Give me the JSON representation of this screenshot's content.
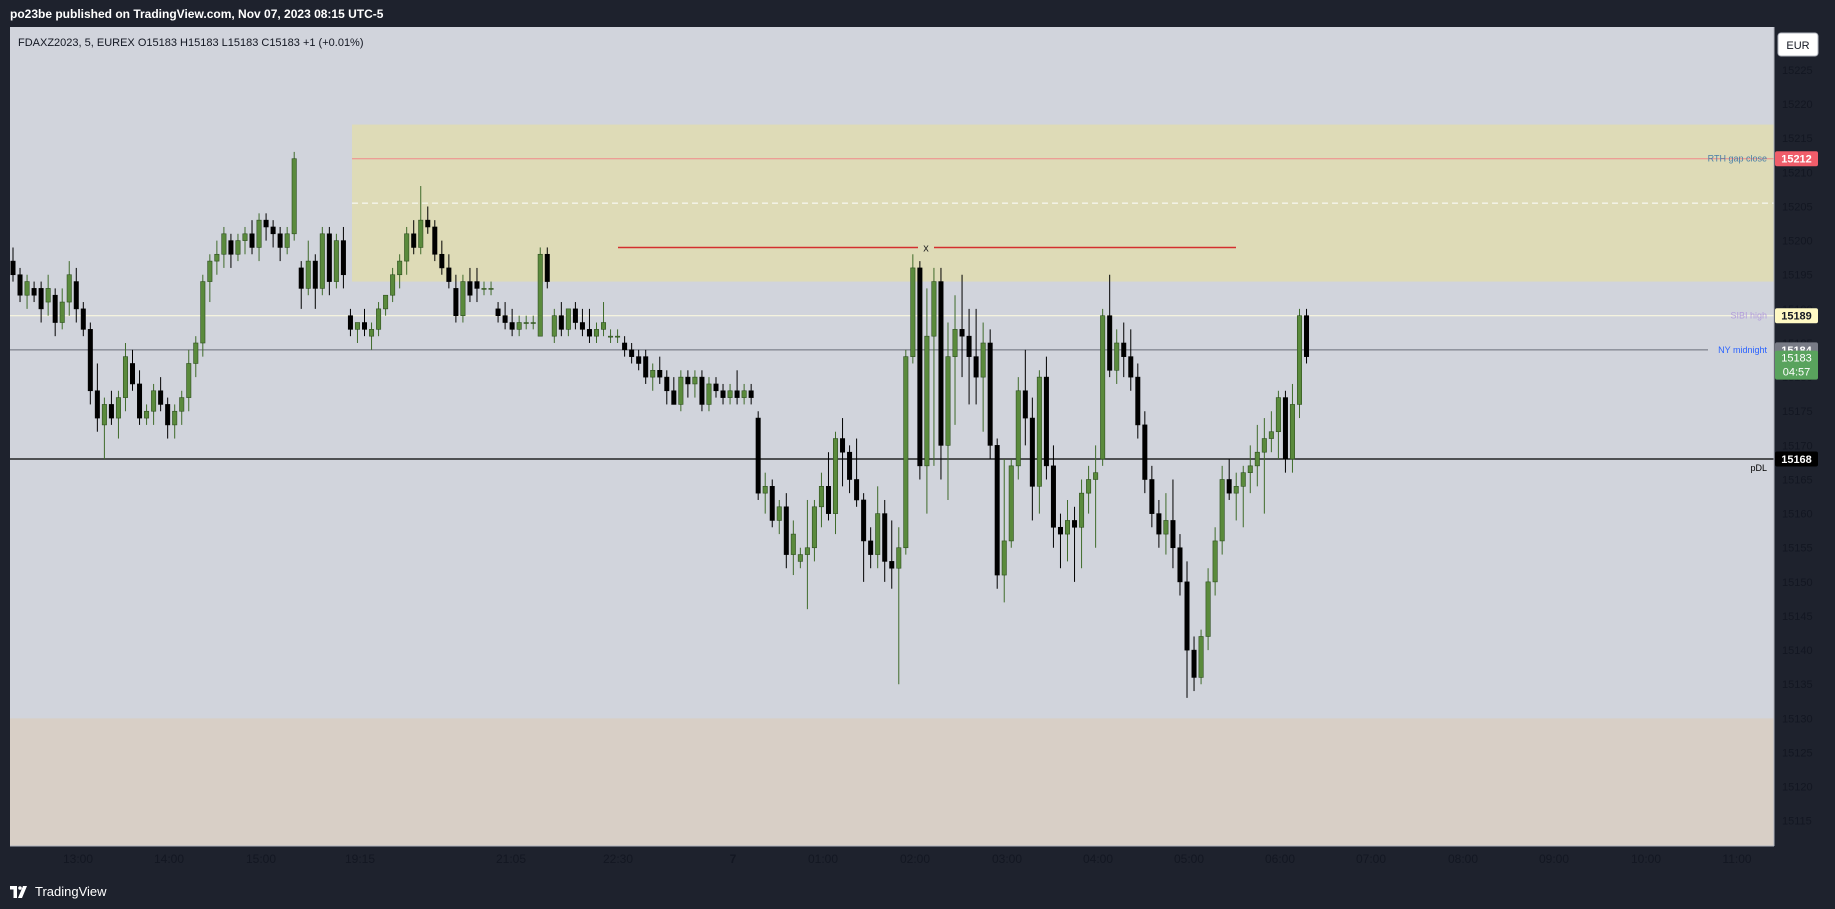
{
  "header": {
    "published": "po23be published on TradingView.com, Nov 07, 2023 08:15 UTC-5"
  },
  "legend": {
    "symbol_line": "FDAXZ2023, 5, EUREX  O15183  H15183  L15183  C15183  +1 (+0.01%)"
  },
  "currency_button": "EUR",
  "footer": {
    "brand": "TradingView",
    "logo_icon": "tradingview-logo-icon"
  },
  "colors": {
    "bg": "#d1d4dc",
    "zone_yellow": "#dedbb7",
    "zone_tan": "#d8cfc6",
    "up_fill": "#5a8a3c",
    "down_fill": "#000000",
    "rth_badge": "#f05d6a",
    "sibi_badge": "#fff9c4",
    "last_badge": "#787b86",
    "close_badge": "#59a35d",
    "pdl_badge": "#000000"
  },
  "annotations": {
    "rth_gap_close": "RTH gap close",
    "sibi_high": "SIBI high",
    "ny_midnight": "NY midnight",
    "pdl": "pDL",
    "x_marker": "x",
    "countdown": "04:57"
  },
  "chart_data": {
    "type": "candlestick",
    "symbol": "FDAXZ2023",
    "timeframe": "5",
    "exchange": "EUREX",
    "ohlc_readout": {
      "open": 15183,
      "high": 15183,
      "low": 15183,
      "close": 15183,
      "change": "+1 (+0.01%)"
    },
    "y_axis": {
      "ticks": [
        15225,
        15220,
        15215,
        15210,
        15205,
        15200,
        15195,
        15190,
        15185,
        15180,
        15175,
        15170,
        15165,
        15160,
        15155,
        15150,
        15145,
        15140,
        15135,
        15130,
        15125,
        15120,
        15115
      ],
      "visible_range": [
        15111.3,
        15231.3
      ]
    },
    "x_axis": {
      "ticks": [
        "13:00",
        "14:00",
        "15:00",
        "19:15",
        "21:05",
        "22:30",
        "7",
        "01:00",
        "02:00",
        "03:00",
        "04:00",
        "05:00",
        "06:00",
        "07:00",
        "08:00",
        "09:00",
        "10:00",
        "11:00"
      ]
    },
    "price_labels": [
      {
        "name": "rth-gap-close",
        "value": 15212,
        "label": "15212"
      },
      {
        "name": "sibi-high",
        "value": 15189,
        "label": "15189"
      },
      {
        "name": "last-price",
        "value": 15184,
        "label": "15184"
      },
      {
        "name": "close-price",
        "value": 15183,
        "label": "15183"
      },
      {
        "name": "pdl",
        "value": 15168,
        "label": "15168"
      }
    ],
    "levels": [
      {
        "name": "RTH gap close",
        "value": 15212
      },
      {
        "name": "SIBI high",
        "value": 15189
      },
      {
        "name": "NY midnight",
        "value": 15184
      },
      {
        "name": "pDL",
        "value": 15168
      },
      {
        "name": "x",
        "value": 15199
      }
    ],
    "zones": [
      {
        "name": "gap-zone",
        "from": 15194,
        "to": 15217,
        "mid": 15205.5
      },
      {
        "name": "lower-zone",
        "from": 15111.3,
        "to": 15130
      }
    ],
    "candles": [
      [
        15197,
        15199,
        15194,
        15195
      ],
      [
        15195,
        15196,
        15191,
        15192
      ],
      [
        15192,
        15195,
        15190,
        15194
      ],
      [
        15193,
        15194,
        15191,
        15192
      ],
      [
        15193,
        15194,
        15188,
        15190
      ],
      [
        15191,
        15195,
        15189,
        15193
      ],
      [
        15192,
        15193,
        15186,
        15188
      ],
      [
        15188,
        15193,
        15187,
        15191
      ],
      [
        15191,
        15197,
        15189,
        15195
      ],
      [
        15194,
        15196,
        15188,
        15190
      ],
      [
        15190,
        15191,
        15186,
        15187
      ],
      [
        15187,
        15188,
        15176,
        15178
      ],
      [
        15178,
        15182,
        15172,
        15174
      ],
      [
        15173,
        15177,
        15168,
        15176
      ],
      [
        15176,
        15178,
        15173,
        15174
      ],
      [
        15174,
        15178,
        15171,
        15177
      ],
      [
        15177,
        15185,
        15175,
        15183
      ],
      [
        15182,
        15184,
        15178,
        15179
      ],
      [
        15179,
        15181,
        15173,
        15174
      ],
      [
        15174,
        15176,
        15173,
        15175
      ],
      [
        15175,
        15179,
        15173,
        15178
      ],
      [
        15178,
        15180,
        15175,
        15176
      ],
      [
        15176,
        15177,
        15171,
        15173
      ],
      [
        15173,
        15176,
        15171,
        15175
      ],
      [
        15175,
        15178,
        15173,
        15177
      ],
      [
        15177,
        15184,
        15175,
        15182
      ],
      [
        15182,
        15186,
        15180,
        15185
      ],
      [
        15185,
        15195,
        15183,
        15194
      ],
      [
        15194,
        15198,
        15191,
        15197
      ],
      [
        15197,
        15200,
        15195,
        15198
      ],
      [
        15198,
        15202,
        15196,
        15201
      ],
      [
        15200,
        15201,
        15196,
        15198
      ],
      [
        15198,
        15201,
        15197,
        15200
      ],
      [
        15200,
        15202,
        15198,
        15201
      ],
      [
        15201,
        15203,
        15198,
        15199
      ],
      [
        15199,
        15204,
        15197,
        15203
      ],
      [
        15203,
        15204,
        15200,
        15202
      ],
      [
        15202,
        15203,
        15199,
        15201
      ],
      [
        15201,
        15202,
        15197,
        15199
      ],
      [
        15199,
        15202,
        15198,
        15201
      ],
      [
        15201,
        15213,
        15200,
        15212
      ],
      [
        15196,
        15197,
        15190,
        15193
      ],
      [
        15193,
        15200,
        15192,
        15197
      ],
      [
        15197,
        15198,
        15190,
        15193
      ],
      [
        15193,
        15202,
        15192,
        15201
      ],
      [
        15201,
        15202,
        15192,
        15194
      ],
      [
        15194,
        15201,
        15193,
        15200
      ],
      [
        15200,
        15202,
        15193,
        15195
      ],
      [
        15189,
        15190,
        15186,
        15187
      ],
      [
        15187,
        15188,
        15185,
        15188
      ],
      [
        15188,
        15190,
        15186,
        15187
      ],
      [
        15186,
        15188,
        15184,
        15187
      ],
      [
        15187,
        15191,
        15186,
        15190
      ],
      [
        15190,
        15192,
        15189,
        15192
      ],
      [
        15192,
        15196,
        15191,
        15195
      ],
      [
        15195,
        15198,
        15193,
        15197
      ],
      [
        15197,
        15202,
        15195,
        15201
      ],
      [
        15201,
        15203,
        15198,
        15199
      ],
      [
        15199,
        15208,
        15198,
        15203
      ],
      [
        15203,
        15205,
        15201,
        15202
      ],
      [
        15202,
        15203,
        15197,
        15198
      ],
      [
        15198,
        15200,
        15195,
        15196
      ],
      [
        15196,
        15198,
        15193,
        15194
      ],
      [
        15193,
        15195,
        15188,
        15189
      ],
      [
        15189,
        15195,
        15188,
        15194
      ],
      [
        15194,
        15196,
        15191,
        15192
      ],
      [
        15194,
        15196,
        15191,
        15193
      ],
      [
        15193,
        15194,
        15192,
        15193
      ],
      [
        15193,
        15194,
        15192,
        15193
      ],
      [
        15190,
        15191,
        15188,
        15189
      ],
      [
        15189,
        15191,
        15187,
        15188
      ],
      [
        15188,
        15190,
        15186,
        15187
      ],
      [
        15187,
        15189,
        15186,
        15188
      ],
      [
        15188,
        15189,
        15187,
        15188
      ],
      [
        15188,
        15189,
        15187,
        15188
      ],
      [
        15186,
        15199,
        15186,
        15198
      ],
      [
        15198,
        15199,
        15193,
        15194
      ],
      [
        15186,
        15190,
        15185,
        15189
      ],
      [
        15189,
        15191,
        15186,
        15187
      ],
      [
        15187,
        15190,
        15186,
        15190
      ],
      [
        15190,
        15191,
        15187,
        15188
      ],
      [
        15188,
        15190,
        15186,
        15187
      ],
      [
        15187,
        15190,
        15185,
        15186
      ],
      [
        15186,
        15188,
        15185,
        15187
      ],
      [
        15187,
        15191,
        15186,
        15188
      ],
      [
        15186,
        15187,
        15185,
        15186
      ],
      [
        15186,
        15187,
        15185,
        15186
      ],
      [
        15185,
        15186,
        15183,
        15184
      ],
      [
        15184,
        15185,
        15182,
        15183
      ],
      [
        15183,
        15184,
        15181,
        15182
      ],
      [
        15183,
        15184,
        15179,
        15180
      ],
      [
        15180,
        15182,
        15178,
        15181
      ],
      [
        15181,
        15183,
        15179,
        15180
      ],
      [
        15180,
        15181,
        15176,
        15178
      ],
      [
        15178,
        15180,
        15176,
        15176
      ],
      [
        15176,
        15181,
        15175,
        15180
      ],
      [
        15180,
        15181,
        15177,
        15179
      ],
      [
        15179,
        15181,
        15177,
        15180
      ],
      [
        15180,
        15181,
        15175,
        15176
      ],
      [
        15176,
        15180,
        15175,
        15179
      ],
      [
        15179,
        15180,
        15177,
        15178
      ],
      [
        15178,
        15179,
        15176,
        15177
      ],
      [
        15177,
        15179,
        15176,
        15178
      ],
      [
        15178,
        15181,
        15176,
        15177
      ],
      [
        15177,
        15179,
        15176,
        15178
      ],
      [
        15178,
        15179,
        15176,
        15177
      ],
      [
        15174,
        15175,
        15162,
        15163
      ],
      [
        15163,
        15166,
        15160,
        15164
      ],
      [
        15164,
        15165,
        15158,
        15159
      ],
      [
        15159,
        15162,
        15157,
        15161
      ],
      [
        15161,
        15163,
        15152,
        15154
      ],
      [
        15154,
        15159,
        15151,
        15157
      ],
      [
        15153,
        15155,
        15152,
        15154
      ],
      [
        15154,
        15162,
        15146,
        15155
      ],
      [
        15155,
        15162,
        15153,
        15161
      ],
      [
        15161,
        15166,
        15158,
        15164
      ],
      [
        15164,
        15169,
        15159,
        15160
      ],
      [
        15160,
        15172,
        15157,
        15171
      ],
      [
        15171,
        15174,
        15164,
        15169
      ],
      [
        15169,
        15170,
        15163,
        15165
      ],
      [
        15165,
        15171,
        15161,
        15162
      ],
      [
        15162,
        15163,
        15150,
        15156
      ],
      [
        15156,
        15158,
        15152,
        15154
      ],
      [
        15154,
        15164,
        15152,
        15160
      ],
      [
        15160,
        15162,
        15150,
        15153
      ],
      [
        15153,
        15159,
        15149,
        15152
      ],
      [
        15152,
        15158,
        15135,
        15155
      ],
      [
        15155,
        15184,
        15154,
        15183
      ],
      [
        15183,
        15198,
        15182,
        15196
      ],
      [
        15196,
        15197,
        15165,
        15167
      ],
      [
        15167,
        15193,
        15160,
        15186
      ],
      [
        15186,
        15196,
        15167,
        15194
      ],
      [
        15194,
        15196,
        15165,
        15170
      ],
      [
        15170,
        15188,
        15162,
        15183
      ],
      [
        15183,
        15192,
        15173,
        15187
      ],
      [
        15187,
        15195,
        15180,
        15186
      ],
      [
        15186,
        15190,
        15176,
        15183
      ],
      [
        15183,
        15190,
        15176,
        15180
      ],
      [
        15180,
        15188,
        15172,
        15185
      ],
      [
        15185,
        15187,
        15168,
        15170
      ],
      [
        15170,
        15171,
        15149,
        15151
      ],
      [
        15151,
        15168,
        15147,
        15156
      ],
      [
        15156,
        15168,
        15155,
        15167
      ],
      [
        15167,
        15180,
        15165,
        15178
      ],
      [
        15178,
        15184,
        15170,
        15174
      ],
      [
        15174,
        15177,
        15159,
        15164
      ],
      [
        15164,
        15181,
        15160,
        15180
      ],
      [
        15180,
        15183,
        15165,
        15167
      ],
      [
        15167,
        15170,
        15155,
        15158
      ],
      [
        15158,
        15160,
        15152,
        15157
      ],
      [
        15157,
        15162,
        15153,
        15159
      ],
      [
        15159,
        15161,
        15150,
        15158
      ],
      [
        15158,
        15165,
        15152,
        15163
      ],
      [
        15163,
        15167,
        15160,
        15165
      ],
      [
        15165,
        15170,
        15155,
        15166
      ],
      [
        15168,
        15190,
        15167,
        15189
      ],
      [
        15189,
        15195,
        15180,
        15181
      ],
      [
        15181,
        15187,
        15179,
        15185
      ],
      [
        15185,
        15188,
        15180,
        15183
      ],
      [
        15183,
        15187,
        15178,
        15180
      ],
      [
        15180,
        15182,
        15171,
        15173
      ],
      [
        15173,
        15175,
        15163,
        15165
      ],
      [
        15165,
        15167,
        15158,
        15160
      ],
      [
        15160,
        15162,
        15155,
        15157
      ],
      [
        15157,
        15163,
        15154,
        15159
      ],
      [
        15159,
        15165,
        15152,
        15155
      ],
      [
        15155,
        15157,
        15148,
        15150
      ],
      [
        15150,
        15153,
        15133,
        15140
      ],
      [
        15140,
        15142,
        15134,
        15136
      ],
      [
        15136,
        15143,
        15135,
        15142
      ],
      [
        15142,
        15152,
        15140,
        15150
      ],
      [
        15150,
        15158,
        15148,
        15156
      ],
      [
        15156,
        15167,
        15154,
        15165
      ],
      [
        15165,
        15168,
        15162,
        15163
      ],
      [
        15163,
        15166,
        15159,
        15164
      ],
      [
        15164,
        15167,
        15158,
        15166
      ],
      [
        15166,
        15170,
        15163,
        15167
      ],
      [
        15167,
        15173,
        15164,
        15169
      ],
      [
        15169,
        15174,
        15160,
        15171
      ],
      [
        15171,
        15175,
        15169,
        15172
      ],
      [
        15172,
        15178,
        15168,
        15177
      ],
      [
        15177,
        15178,
        15166,
        15168
      ],
      [
        15168,
        15179,
        15166,
        15176
      ],
      [
        15176,
        15190,
        15174,
        15189
      ],
      [
        15189,
        15190,
        15182,
        15183
      ]
    ]
  }
}
